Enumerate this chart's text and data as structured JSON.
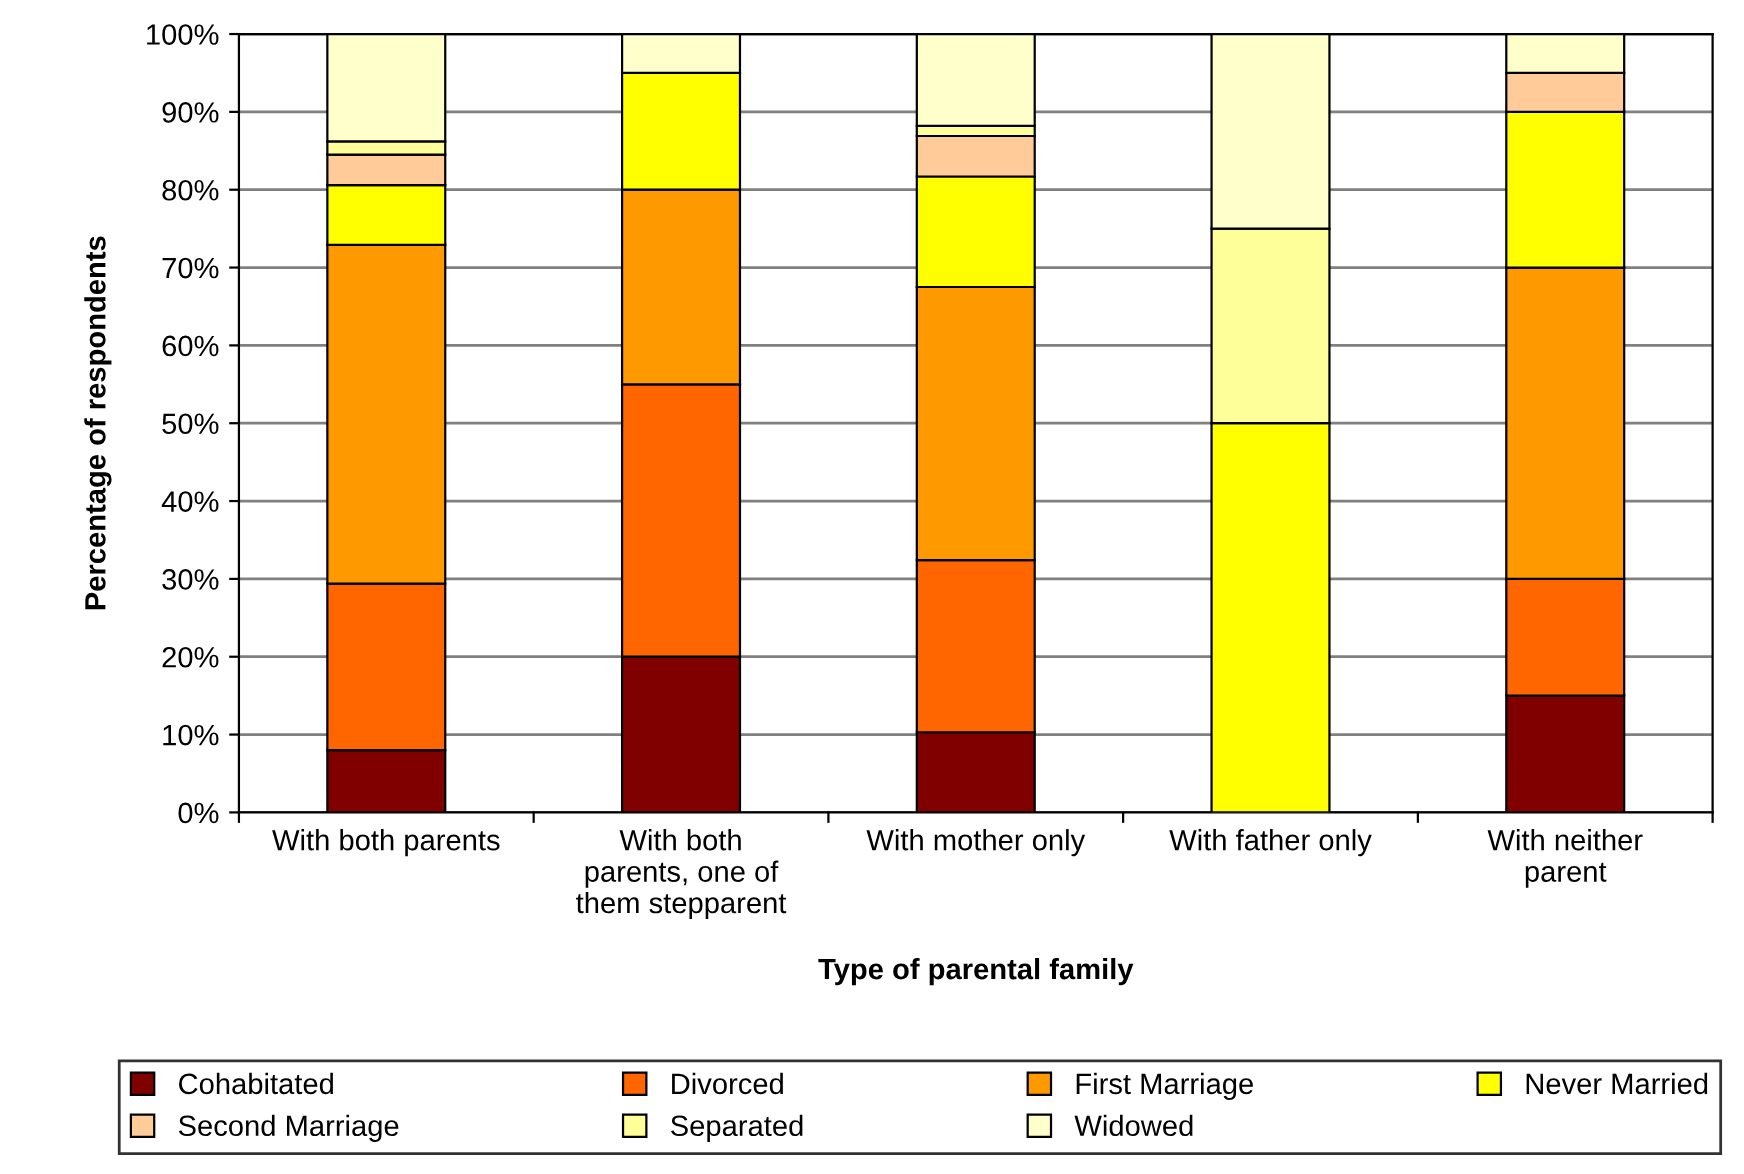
{
  "chart_data": {
    "type": "bar",
    "stacked": true,
    "xlabel": "Type of parental family",
    "ylabel": "Percentage of respondents",
    "categories": [
      "With both parents",
      "With both\nparents, one of\nthem stepparent",
      "With mother only",
      "With father only",
      "With neither\nparent"
    ],
    "series": [
      {
        "name": "Cohabitated",
        "color": "#800000",
        "values": [
          8,
          20,
          10.3,
          null,
          15
        ]
      },
      {
        "name": "Divorced",
        "color": "#ff6600",
        "values": [
          21.4,
          35,
          22.1,
          null,
          15
        ]
      },
      {
        "name": "First Marriage",
        "color": "#ff9900",
        "values": [
          43.5,
          25,
          35.1,
          null,
          40
        ]
      },
      {
        "name": "Never Married",
        "color": "#ffff00",
        "values": [
          7.7,
          15,
          14.2,
          50,
          20
        ]
      },
      {
        "name": "Second Marriage",
        "color": "#ffcc99",
        "values": [
          3.9,
          null,
          5.2,
          null,
          5
        ]
      },
      {
        "name": "Separated",
        "color": "#ffff99",
        "values": [
          1.7,
          null,
          1.3,
          25,
          null
        ]
      },
      {
        "name": "Widowed",
        "color": "#ffffcc",
        "values": [
          13.8,
          5,
          11.8,
          25,
          5
        ]
      }
    ],
    "ylim": [
      0,
      100
    ],
    "yticks": [
      {
        "value": 0,
        "label": "0%"
      },
      {
        "value": 10,
        "label": "10%"
      },
      {
        "value": 20,
        "label": "20%"
      },
      {
        "value": 30,
        "label": "30%"
      },
      {
        "value": 40,
        "label": "40%"
      },
      {
        "value": 50,
        "label": "50%"
      },
      {
        "value": 60,
        "label": "60%"
      },
      {
        "value": 70,
        "label": "70%"
      },
      {
        "value": 80,
        "label": "80%"
      },
      {
        "value": 90,
        "label": "90%"
      },
      {
        "value": 100,
        "label": "100%"
      }
    ],
    "grid": "y",
    "legend": "bottom"
  }
}
